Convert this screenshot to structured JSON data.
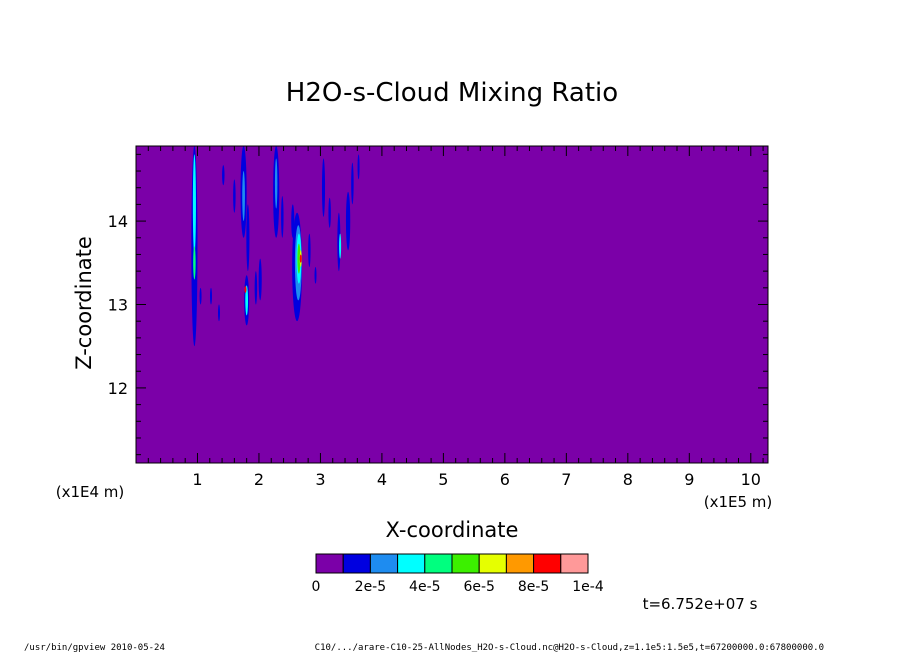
{
  "chart_data": {
    "type": "heatmap",
    "title": "H2O-s-Cloud Mixing Ratio",
    "xlabel": "X-coordinate",
    "ylabel": "Z-coordinate",
    "x_scale_label": "(x1E5 m)",
    "y_scale_label": "(x1E4 m)",
    "xlim": [
      0,
      10.28
    ],
    "ylim": [
      11.1,
      14.9
    ],
    "x_ticks": [
      "1",
      "2",
      "3",
      "4",
      "5",
      "6",
      "7",
      "8",
      "9",
      "10"
    ],
    "y_ticks": [
      "12",
      "13",
      "14"
    ],
    "background_level": 0,
    "colorbar": {
      "colors": [
        "#7B00A8",
        "#0000E0",
        "#1E8CF0",
        "#00FFFF",
        "#00FF7F",
        "#3CF000",
        "#E6FF00",
        "#FF9900",
        "#FF0000",
        "#FF9999"
      ],
      "tick_labels": [
        "0",
        "2e-5",
        "4e-5",
        "6e-5",
        "8e-5",
        "1e-4"
      ]
    },
    "time_label": "t=6.752e+07 s",
    "features": [
      {
        "x": 0.95,
        "y": 13.7,
        "w": 0.05,
        "h": 1.2,
        "level": 1
      },
      {
        "x": 0.95,
        "y": 14.2,
        "w": 0.025,
        "h": 0.6,
        "level": 3
      },
      {
        "x": 0.95,
        "y": 13.5,
        "w": 0.02,
        "h": 0.2,
        "level": 4
      },
      {
        "x": 1.05,
        "y": 13.1,
        "w": 0.015,
        "h": 0.1,
        "level": 1
      },
      {
        "x": 1.22,
        "y": 13.1,
        "w": 0.015,
        "h": 0.1,
        "level": 1
      },
      {
        "x": 1.35,
        "y": 12.9,
        "w": 0.015,
        "h": 0.1,
        "level": 1
      },
      {
        "x": 1.42,
        "y": 14.55,
        "w": 0.02,
        "h": 0.12,
        "level": 1
      },
      {
        "x": 1.6,
        "y": 14.3,
        "w": 0.02,
        "h": 0.2,
        "level": 1
      },
      {
        "x": 1.75,
        "y": 14.35,
        "w": 0.05,
        "h": 0.55,
        "level": 1
      },
      {
        "x": 1.75,
        "y": 14.3,
        "w": 0.022,
        "h": 0.3,
        "level": 2
      },
      {
        "x": 1.82,
        "y": 13.8,
        "w": 0.025,
        "h": 0.4,
        "level": 1
      },
      {
        "x": 1.8,
        "y": 13.05,
        "w": 0.04,
        "h": 0.3,
        "level": 1
      },
      {
        "x": 1.8,
        "y": 13.05,
        "w": 0.022,
        "h": 0.18,
        "level": 3
      },
      {
        "x": 1.78,
        "y": 13.18,
        "w": 0.01,
        "h": 0.04,
        "level": 8
      },
      {
        "x": 1.95,
        "y": 13.2,
        "w": 0.02,
        "h": 0.2,
        "level": 1
      },
      {
        "x": 2.02,
        "y": 13.3,
        "w": 0.025,
        "h": 0.25,
        "level": 1
      },
      {
        "x": 2.28,
        "y": 14.35,
        "w": 0.05,
        "h": 0.55,
        "level": 1
      },
      {
        "x": 2.28,
        "y": 14.45,
        "w": 0.02,
        "h": 0.3,
        "level": 2
      },
      {
        "x": 2.38,
        "y": 14.05,
        "w": 0.02,
        "h": 0.25,
        "level": 1
      },
      {
        "x": 2.62,
        "y": 13.45,
        "w": 0.08,
        "h": 0.65,
        "level": 1
      },
      {
        "x": 2.64,
        "y": 13.5,
        "w": 0.055,
        "h": 0.45,
        "level": 2
      },
      {
        "x": 2.65,
        "y": 13.55,
        "w": 0.04,
        "h": 0.3,
        "level": 3
      },
      {
        "x": 2.65,
        "y": 13.55,
        "w": 0.025,
        "h": 0.18,
        "level": 5
      },
      {
        "x": 2.68,
        "y": 13.55,
        "w": 0.015,
        "h": 0.1,
        "level": 6
      },
      {
        "x": 2.68,
        "y": 13.55,
        "w": 0.008,
        "h": 0.05,
        "level": 8
      },
      {
        "x": 2.55,
        "y": 14.0,
        "w": 0.025,
        "h": 0.2,
        "level": 1
      },
      {
        "x": 2.82,
        "y": 13.65,
        "w": 0.02,
        "h": 0.2,
        "level": 1
      },
      {
        "x": 2.92,
        "y": 13.35,
        "w": 0.015,
        "h": 0.1,
        "level": 1
      },
      {
        "x": 3.05,
        "y": 14.4,
        "w": 0.025,
        "h": 0.35,
        "level": 1
      },
      {
        "x": 3.15,
        "y": 14.1,
        "w": 0.02,
        "h": 0.18,
        "level": 1
      },
      {
        "x": 3.3,
        "y": 13.75,
        "w": 0.025,
        "h": 0.35,
        "level": 1
      },
      {
        "x": 3.32,
        "y": 13.7,
        "w": 0.012,
        "h": 0.15,
        "level": 3
      },
      {
        "x": 3.45,
        "y": 14.0,
        "w": 0.035,
        "h": 0.35,
        "level": 1
      },
      {
        "x": 3.52,
        "y": 14.45,
        "w": 0.02,
        "h": 0.25,
        "level": 1
      },
      {
        "x": 3.62,
        "y": 14.65,
        "w": 0.015,
        "h": 0.15,
        "level": 1
      }
    ]
  },
  "footer": {
    "left": "/usr/bin/gpview  2010-05-24",
    "right": "C10/.../arare-C10-25-AllNodes_H2O-s-Cloud.nc@H2O-s-Cloud,z=1.1e5:1.5e5,t=67200000.0:67800000.0"
  }
}
